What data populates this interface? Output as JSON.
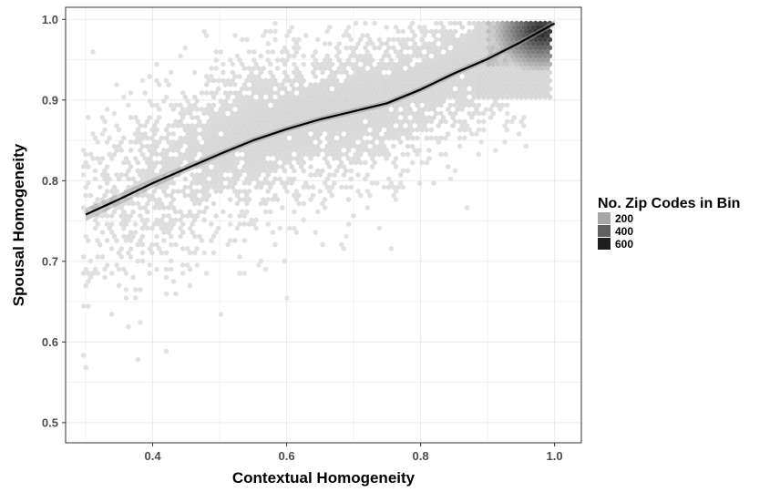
{
  "chart_data": {
    "type": "hexbin-scatter",
    "xlabel": "Contextual Homogeneity",
    "ylabel": "Spousal Homogeneity",
    "xlim": [
      0.27,
      1.04
    ],
    "ylim": [
      0.475,
      1.015
    ],
    "x_ticks": [
      {
        "value": 0.4,
        "label": "0.4"
      },
      {
        "value": 0.6,
        "label": "0.6"
      },
      {
        "value": 0.8,
        "label": "0.8"
      },
      {
        "value": 1.0,
        "label": "1.0"
      }
    ],
    "y_ticks": [
      {
        "value": 0.5,
        "label": "0.5"
      },
      {
        "value": 0.6,
        "label": "0.6"
      },
      {
        "value": 0.7,
        "label": "0.7"
      },
      {
        "value": 0.8,
        "label": "0.8"
      },
      {
        "value": 0.9,
        "label": "0.9"
      },
      {
        "value": 1.0,
        "label": "1.0"
      }
    ],
    "grid": true,
    "legend": {
      "title": "No. Zip Codes in Bin",
      "placement": "right",
      "entries": [
        {
          "label": "200",
          "color": "#a6a6a6"
        },
        {
          "label": "400",
          "color": "#606060"
        },
        {
          "label": "600",
          "color": "#1e1e1e"
        }
      ]
    },
    "smooth_line": {
      "x": [
        0.3,
        0.35,
        0.4,
        0.45,
        0.5,
        0.55,
        0.6,
        0.65,
        0.7,
        0.75,
        0.8,
        0.85,
        0.9,
        0.95,
        1.0
      ],
      "y": [
        0.758,
        0.777,
        0.797,
        0.815,
        0.833,
        0.85,
        0.864,
        0.876,
        0.886,
        0.896,
        0.913,
        0.933,
        0.951,
        0.972,
        0.995
      ],
      "color": "#000000"
    },
    "bin_color_low": "#e6e6e6",
    "bin_color_high": "#1a1a1a",
    "dense_cluster": {
      "x": 0.98,
      "y": 0.985
    }
  }
}
